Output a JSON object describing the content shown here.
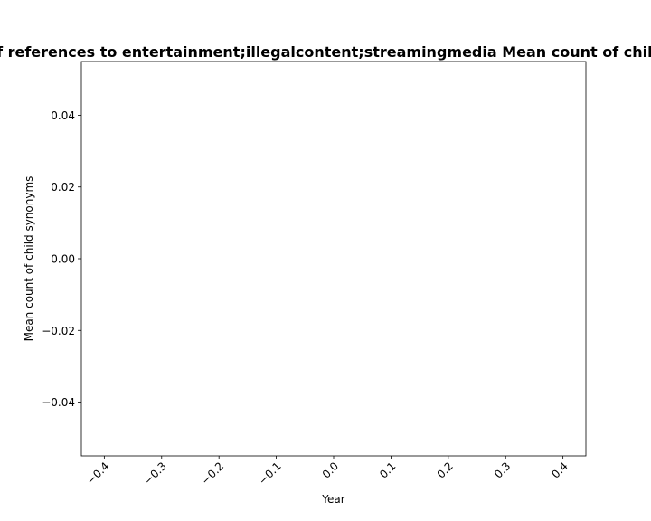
{
  "chart_data": {
    "type": "line",
    "title": "Amount of references to entertainment;illegalcontent;streamingmedia Mean count of child synonyms",
    "xlabel": "Year",
    "ylabel": "Mean count of child synonyms",
    "xlim": [
      -0.44,
      0.44
    ],
    "ylim": [
      -0.055,
      0.055
    ],
    "x_ticks": [
      -0.4,
      -0.3,
      -0.2,
      -0.1,
      0.0,
      0.1,
      0.2,
      0.3,
      0.4
    ],
    "x_tick_labels": [
      "−0.4",
      "−0.3",
      "−0.2",
      "−0.1",
      "0.0",
      "0.1",
      "0.2",
      "0.3",
      "0.4"
    ],
    "y_ticks": [
      -0.04,
      -0.02,
      0.0,
      0.02,
      0.04
    ],
    "y_tick_labels": [
      "−0.04",
      "−0.02",
      "0.00",
      "0.02",
      "0.04"
    ],
    "series": [],
    "grid": false,
    "legend": false
  }
}
